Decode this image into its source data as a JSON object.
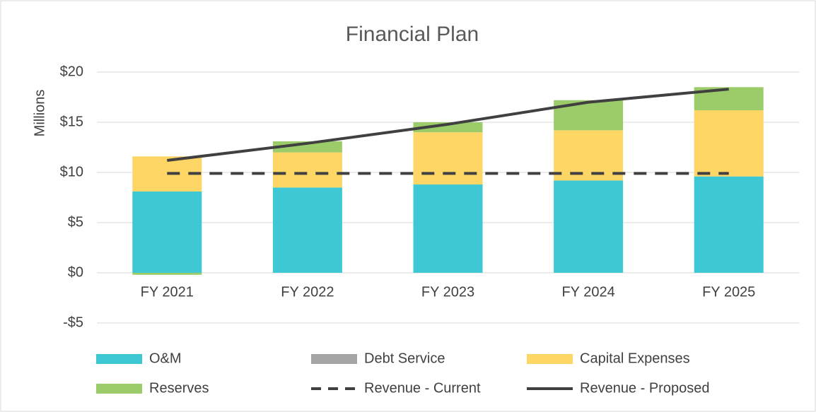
{
  "chart_data": {
    "type": "bar",
    "stacked": true,
    "title": "Financial Plan",
    "y_label": "Millions",
    "categories": [
      "FY 2021",
      "FY 2022",
      "FY 2023",
      "FY 2024",
      "FY 2025"
    ],
    "series": [
      {
        "name": "O&M",
        "color": "#3ec8d4",
        "values": [
          8.1,
          8.5,
          8.8,
          9.2,
          9.6
        ]
      },
      {
        "name": "Debt Service",
        "color": "#a5a5a5",
        "values": [
          0,
          0,
          0,
          0,
          0
        ]
      },
      {
        "name": "Capital Expenses",
        "color": "#fdd666",
        "values": [
          3.5,
          3.5,
          5.2,
          5.0,
          6.6
        ]
      },
      {
        "name": "Reserves",
        "color": "#9ccc6a",
        "values": [
          -0.2,
          1.1,
          1.0,
          3.0,
          2.3
        ]
      },
      {
        "name": "Revenue - Current",
        "type": "line",
        "dashed": true,
        "color": "#404040",
        "values": [
          9.9,
          9.9,
          9.9,
          9.9,
          9.9
        ]
      },
      {
        "name": "Revenue - Proposed",
        "type": "line",
        "color": "#404040",
        "values": [
          11.2,
          12.9,
          14.8,
          17.0,
          18.3
        ]
      }
    ],
    "ylim": [
      -5,
      20
    ],
    "yticks": [
      {
        "value": -5,
        "label": "-$5"
      },
      {
        "value": 0,
        "label": "$0"
      },
      {
        "value": 5,
        "label": "$5"
      },
      {
        "value": 10,
        "label": "$10"
      },
      {
        "value": 15,
        "label": "$15"
      },
      {
        "value": 20,
        "label": "$20"
      }
    ],
    "grid": true,
    "legend": "bottom"
  }
}
